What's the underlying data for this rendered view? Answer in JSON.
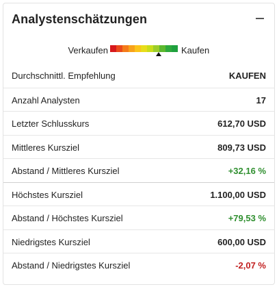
{
  "widget": {
    "title": "Analystenschätzungen"
  },
  "scale": {
    "left_label": "Verkaufen",
    "right_label": "Kaufen",
    "segments": [
      "#d7191c",
      "#ea4a1b",
      "#f47b1a",
      "#f8a21a",
      "#fbc41a",
      "#e8dd1a",
      "#c9dd1a",
      "#9ccd2a",
      "#5cb82e",
      "#2ea93c",
      "#1fa03e"
    ],
    "marker_position": 0.72
  },
  "rows": [
    {
      "label": "Durchschnittl. Empfehlung",
      "value": "KAUFEN",
      "tone": "normal"
    },
    {
      "label": "Anzahl Analysten",
      "value": "17",
      "tone": "normal"
    },
    {
      "label": "Letzter Schlusskurs",
      "value": "612,70 USD",
      "tone": "normal"
    },
    {
      "label": "Mittleres Kursziel",
      "value": "809,73 USD",
      "tone": "normal"
    },
    {
      "label": "Abstand / Mittleres Kursziel",
      "value": "+32,16 %",
      "tone": "pos"
    },
    {
      "label": "Höchstes Kursziel",
      "value": "1.100,00 USD",
      "tone": "normal"
    },
    {
      "label": "Abstand / Höchstes Kursziel",
      "value": "+79,53 %",
      "tone": "pos"
    },
    {
      "label": "Niedrigstes Kursziel",
      "value": "600,00 USD",
      "tone": "normal"
    },
    {
      "label": "Abstand / Niedrigstes Kursziel",
      "value": "-2,07 %",
      "tone": "neg"
    }
  ],
  "colors": {
    "positive": "#2f8f2f",
    "negative": "#c22020"
  }
}
